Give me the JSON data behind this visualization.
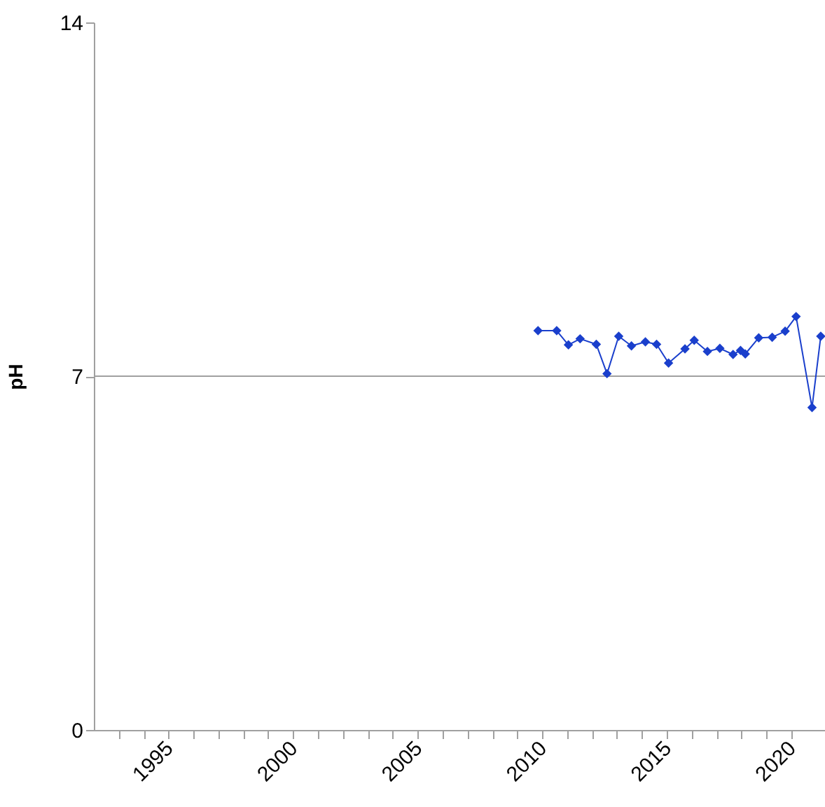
{
  "chart_data": {
    "type": "line",
    "ylabel": "pH",
    "x": [
      2009.83,
      2010.58,
      2011.05,
      2011.52,
      2012.17,
      2012.6,
      2013.07,
      2013.58,
      2014.14,
      2014.59,
      2015.07,
      2015.73,
      2016.1,
      2016.63,
      2017.13,
      2017.66,
      2017.96,
      2018.15,
      2018.69,
      2019.23,
      2019.75,
      2020.19,
      2020.83,
      2021.18
    ],
    "series": [
      {
        "color": "#1a3fcc",
        "values": [
          7.9,
          7.9,
          7.62,
          7.74,
          7.63,
          7.05,
          7.79,
          7.6,
          7.68,
          7.63,
          7.26,
          7.54,
          7.71,
          7.49,
          7.55,
          7.43,
          7.51,
          7.44,
          7.76,
          7.77,
          7.89,
          8.18,
          6.38,
          7.79
        ]
      }
    ],
    "xlim": [
      1992,
      2021.35
    ],
    "xticks": [
      {
        "value": 1993,
        "label": null
      },
      {
        "value": 1994,
        "label": null
      },
      1995,
      {
        "value": 1996,
        "label": null
      },
      {
        "value": 1997,
        "label": null
      },
      {
        "value": 1998,
        "label": null
      },
      {
        "value": 1999,
        "label": null
      },
      2000,
      {
        "value": 2001,
        "label": null
      },
      {
        "value": 2002,
        "label": null
      },
      {
        "value": 2003,
        "label": null
      },
      {
        "value": 2004,
        "label": null
      },
      2005,
      {
        "value": 2006,
        "label": null
      },
      {
        "value": 2007,
        "label": null
      },
      {
        "value": 2008,
        "label": null
      },
      {
        "value": 2009,
        "label": null
      },
      2010,
      {
        "value": 2011,
        "label": null
      },
      {
        "value": 2012,
        "label": null
      },
      {
        "value": 2013,
        "label": null
      },
      {
        "value": 2014,
        "label": null
      },
      2015,
      {
        "value": 2016,
        "label": null
      },
      {
        "value": 2017,
        "label": null
      },
      {
        "value": 2018,
        "label": null
      },
      {
        "value": 2019,
        "label": null
      },
      2020
    ],
    "ylim": [
      0,
      14
    ],
    "yticks": [
      0,
      7,
      14
    ],
    "ref_lines": [
      {
        "axis": "y",
        "value": 7,
        "color": "#a0a0a0"
      }
    ],
    "marker": "diamond",
    "line_style": "solid"
  }
}
